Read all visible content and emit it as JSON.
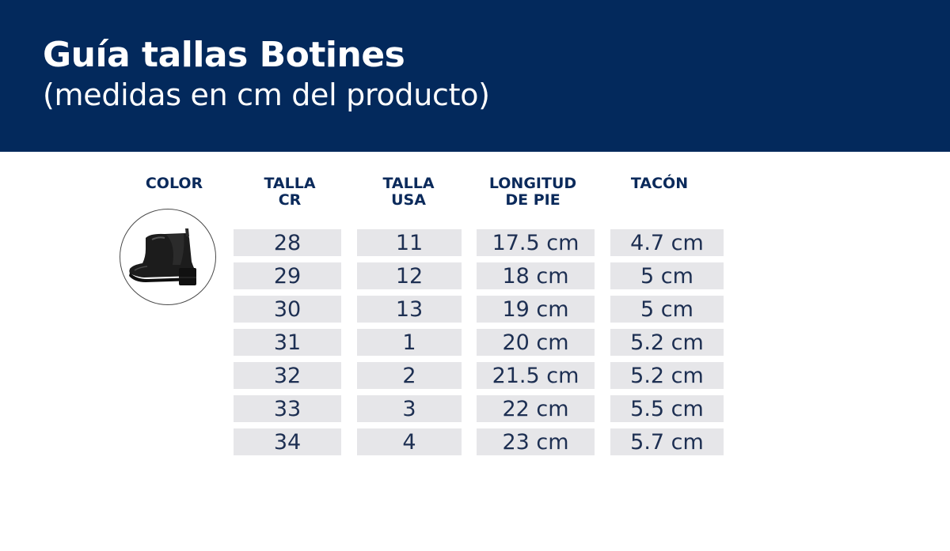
{
  "header": {
    "title": "Guía tallas Botines",
    "subtitle": "(medidas en cm del producto)"
  },
  "table": {
    "headers": {
      "color": "COLOR",
      "talla_cr": "TALLA\nCR",
      "talla_usa": "TALLA\nUSA",
      "longitud": "LONGITUD\nDE PIE",
      "tacon": "TACÓN"
    },
    "rows": [
      {
        "cr": "28",
        "usa": "11",
        "longitud": "17.5 cm",
        "tacon": "4.7 cm"
      },
      {
        "cr": "29",
        "usa": "12",
        "longitud": "18 cm",
        "tacon": "5 cm"
      },
      {
        "cr": "30",
        "usa": "13",
        "longitud": "19 cm",
        "tacon": "5 cm"
      },
      {
        "cr": "31",
        "usa": "1",
        "longitud": "20 cm",
        "tacon": "5.2 cm"
      },
      {
        "cr": "32",
        "usa": "2",
        "longitud": "21.5 cm",
        "tacon": "5.2 cm"
      },
      {
        "cr": "33",
        "usa": "3",
        "longitud": "22 cm",
        "tacon": "5.5 cm"
      },
      {
        "cr": "34",
        "usa": "4",
        "longitud": "23 cm",
        "tacon": "5.7 cm"
      }
    ]
  },
  "colors": {
    "header_bg": "#03295c",
    "header_text": "#ffffff",
    "table_text": "#1d2f52",
    "cell_bg": "#e6e6e9"
  },
  "product_image": "black-ankle-boot"
}
